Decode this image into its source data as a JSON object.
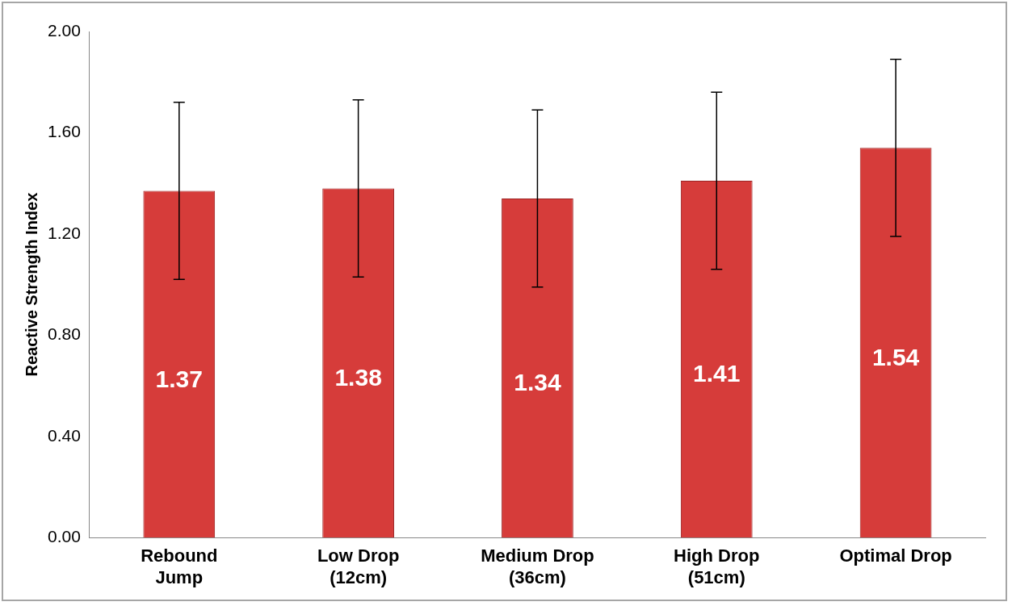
{
  "chart_data": {
    "type": "bar",
    "ylabel": "Reactive Strength Index",
    "categories": [
      "Rebound Jump",
      "Low Drop (12cm)",
      "Medium Drop (36cm)",
      "High Drop (51cm)",
      "Optimal Drop"
    ],
    "values": [
      1.37,
      1.38,
      1.34,
      1.41,
      1.54
    ],
    "errors": [
      0.35,
      0.35,
      0.35,
      0.35,
      0.35
    ],
    "color": "#d63c3a",
    "ylim": [
      0,
      2
    ],
    "yticks": [
      {
        "value": 0,
        "label": "0.00"
      },
      {
        "value": 0.4,
        "label": "0.40"
      },
      {
        "value": 0.8,
        "label": "0.80"
      },
      {
        "value": 1.2,
        "label": "1.20"
      },
      {
        "value": 1.6,
        "label": "1.60"
      },
      {
        "value": 2,
        "label": "2.00"
      }
    ],
    "grid": false,
    "legend": false,
    "data_labels": true
  }
}
